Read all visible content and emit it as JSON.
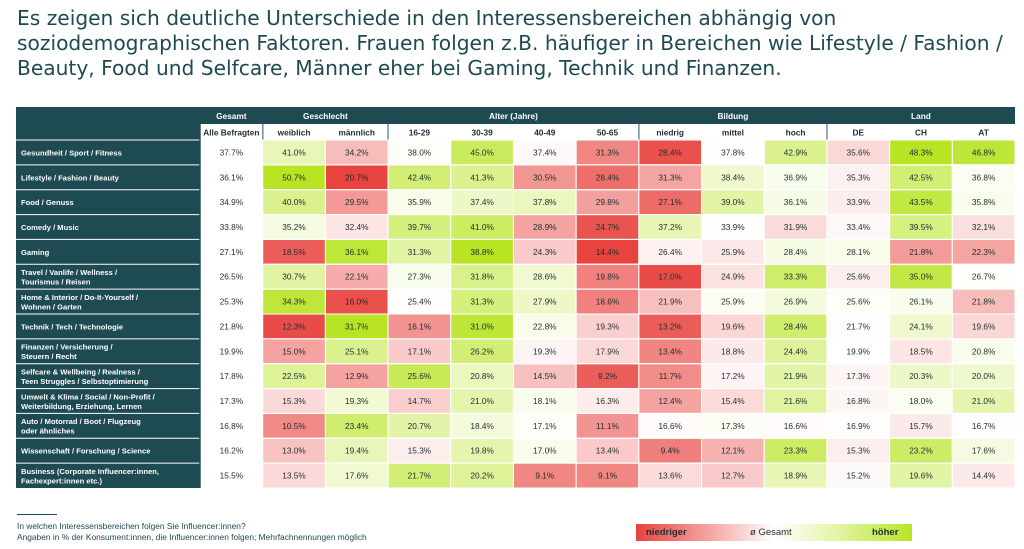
{
  "title": [
    "Es zeigen sich deutliche Unterschiede in den Interessensbereichen abhängig von",
    "soziodemographischen Faktoren. Frauen folgen z.B. häufiger in Bereichen wie Lifestyle / Fashion /",
    "Beauty, Food und Selfcare, Männer eher bei Gaming, Technik und Finanzen."
  ],
  "chart_data": {
    "type": "table",
    "groups": [
      {
        "label": "Gesamt",
        "span": 1
      },
      {
        "label": "Geschlecht",
        "span": 2
      },
      {
        "label": "Alter (Jahre)",
        "span": 4
      },
      {
        "label": "Bildung",
        "span": 3
      },
      {
        "label": "Land",
        "span": 3
      }
    ],
    "columns": [
      "Alle Befragten",
      "weiblich",
      "männlich",
      "16-29",
      "30-39",
      "40-49",
      "50-65",
      "niedrig",
      "mittel",
      "hoch",
      "DE",
      "CH",
      "AT"
    ],
    "rows": [
      {
        "label": [
          "Gesundheit / Sport / Fitness"
        ],
        "values": [
          37.7,
          41.0,
          34.2,
          38.0,
          45.0,
          37.4,
          31.3,
          28.4,
          37.8,
          42.9,
          35.6,
          48.3,
          46.8
        ]
      },
      {
        "label": [
          "Lifestyle / Fashion / Beauty"
        ],
        "values": [
          36.1,
          50.7,
          20.7,
          42.4,
          41.3,
          30.5,
          28.4,
          31.3,
          38.4,
          36.9,
          35.3,
          42.5,
          36.8
        ]
      },
      {
        "label": [
          "Food / Genuss"
        ],
        "values": [
          34.9,
          40.0,
          29.5,
          35.9,
          37.4,
          37.8,
          29.8,
          27.1,
          39.0,
          36.1,
          33.9,
          43.5,
          35.8
        ]
      },
      {
        "label": [
          "Comedy / Music"
        ],
        "values": [
          33.8,
          35.2,
          32.4,
          39.7,
          41.0,
          28.9,
          24.7,
          37.2,
          33.9,
          31.9,
          33.4,
          39.5,
          32.1
        ]
      },
      {
        "label": [
          "Gaming"
        ],
        "values": [
          27.1,
          18.5,
          36.1,
          31.3,
          38.8,
          24.3,
          14.4,
          26.4,
          25.9,
          28.4,
          28.1,
          21.8,
          22.3
        ]
      },
      {
        "label": [
          "Travel / Vanlife / Wellness /",
          "Tourismus / Reisen"
        ],
        "values": [
          26.5,
          30.7,
          22.1,
          27.3,
          31.8,
          28.6,
          19.8,
          17.0,
          24.9,
          33.3,
          25.6,
          35.0,
          26.7
        ]
      },
      {
        "label": [
          "Home & Interior / Do-It-Yourself /",
          "Wohnen / Garten"
        ],
        "values": [
          25.3,
          34.3,
          16.0,
          25.4,
          31.3,
          27.9,
          18.6,
          21.9,
          25.9,
          26.9,
          25.6,
          26.1,
          21.8
        ]
      },
      {
        "label": [
          "Technik / Tech / Technologie"
        ],
        "values": [
          21.8,
          12.3,
          31.7,
          16.1,
          31.0,
          22.8,
          19.3,
          13.2,
          19.6,
          28.4,
          21.7,
          24.1,
          19.6
        ]
      },
      {
        "label": [
          "Finanzen / Versicherung /",
          "Steuern / Recht"
        ],
        "values": [
          19.9,
          15.0,
          25.1,
          17.1,
          26.2,
          19.3,
          17.9,
          13.4,
          18.8,
          24.4,
          19.9,
          18.5,
          20.8
        ]
      },
      {
        "label": [
          "Selfcare & Wellbeing / Realness /",
          "Teen Struggles / Selbstoptimierung"
        ],
        "values": [
          17.8,
          22.5,
          12.9,
          25.6,
          20.8,
          14.5,
          9.2,
          11.7,
          17.2,
          21.9,
          17.3,
          20.3,
          20.0
        ]
      },
      {
        "label": [
          "Umwelt & Klima / Social / Non-Profit /",
          "Weiterbildung, Erziehung, Lernen"
        ],
        "values": [
          17.3,
          15.3,
          19.3,
          14.7,
          21.0,
          18.1,
          16.3,
          12.4,
          15.4,
          21.6,
          16.8,
          18.0,
          21.0
        ]
      },
      {
        "label": [
          "Auto / Motorrad / Boot / Flugzeug",
          "oder ähnliches"
        ],
        "values": [
          16.8,
          10.5,
          23.4,
          20.7,
          18.4,
          17.1,
          11.1,
          16.6,
          17.3,
          16.6,
          16.9,
          15.7,
          16.7
        ]
      },
      {
        "label": [
          "Wissenschaft / Forschung / Science"
        ],
        "values": [
          16.2,
          13.0,
          19.4,
          15.3,
          19.8,
          17.0,
          13.4,
          9.4,
          12.1,
          23.3,
          15.3,
          23.2,
          17.6
        ]
      },
      {
        "label": [
          "Business (Corporate Influencer:innen,",
          "Fachexpert:innen etc.)"
        ],
        "values": [
          15.5,
          13.5,
          17.6,
          21.7,
          20.2,
          9.1,
          9.1,
          13.6,
          12.7,
          18.9,
          15.2,
          19.6,
          14.4
        ]
      }
    ],
    "unit": "%",
    "color_scale": {
      "low": "#e8433e",
      "mid": "#ffffff",
      "high": "#b8e424",
      "reference": "Gesamt"
    }
  },
  "notes": [
    "In welchen Interessensbereichen folgen Sie Influencer:innen?",
    "Angaben in % der Konsument:innen, die Influencer:innen folgen; Mehrfachnennungen möglich"
  ],
  "legend": {
    "low": "niedriger",
    "mid": "ø Gesamt",
    "high": "höher"
  },
  "colors": {
    "header": "#1e4a52",
    "title": "#1e4a52",
    "low": "#e8433e",
    "high": "#b8e424"
  }
}
